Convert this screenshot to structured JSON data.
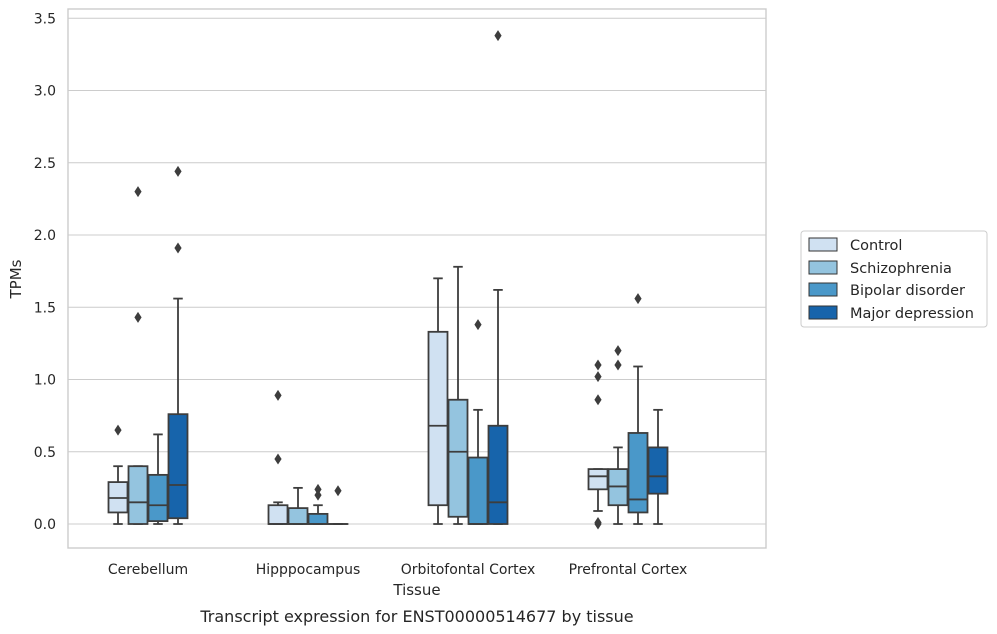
{
  "chart_data": {
    "type": "box",
    "title": "",
    "caption": "Transcript expression for ENST00000514677 by tissue",
    "xlabel": "Tissue",
    "ylabel": "TPMs",
    "ylim": [
      -0.16,
      3.56
    ],
    "yticks": [
      "0.0",
      "0.5",
      "1.0",
      "1.5",
      "2.0",
      "2.5",
      "3.0",
      "3.5"
    ],
    "grid": "horizontal",
    "legend_position": "right",
    "categories": [
      "Cerebellum",
      "Hipppocampus",
      "Orbitofontal Cortex",
      "Prefrontal Cortex"
    ],
    "series": [
      {
        "name": "Control",
        "color": "#d0e1f2",
        "boxes": [
          {
            "whislo": 0.0,
            "q1": 0.08,
            "med": 0.18,
            "q3": 0.29,
            "whishi": 0.4,
            "fliers": [
              0.65
            ]
          },
          {
            "whislo": 0.0,
            "q1": 0.0,
            "med": 0.0,
            "q3": 0.13,
            "whishi": 0.15,
            "fliers": [
              0.45,
              0.89
            ]
          },
          {
            "whislo": 0.0,
            "q1": 0.13,
            "med": 0.68,
            "q3": 1.33,
            "whishi": 1.7,
            "fliers": []
          },
          {
            "whislo": 0.09,
            "q1": 0.24,
            "med": 0.33,
            "q3": 0.38,
            "whishi": 0.38,
            "fliers": [
              0.0,
              0.01,
              0.86,
              1.02,
              1.1
            ]
          }
        ]
      },
      {
        "name": "Schizophrenia",
        "color": "#94c4df",
        "boxes": [
          {
            "whislo": 0.0,
            "q1": 0.0,
            "med": 0.15,
            "q3": 0.4,
            "whishi": 0.4,
            "fliers": [
              1.43,
              2.3
            ]
          },
          {
            "whislo": 0.0,
            "q1": 0.0,
            "med": 0.0,
            "q3": 0.11,
            "whishi": 0.25,
            "fliers": []
          },
          {
            "whislo": 0.0,
            "q1": 0.05,
            "med": 0.5,
            "q3": 0.86,
            "whishi": 1.78,
            "fliers": []
          },
          {
            "whislo": 0.0,
            "q1": 0.13,
            "med": 0.26,
            "q3": 0.38,
            "whishi": 0.53,
            "fliers": [
              1.1,
              1.2
            ]
          }
        ]
      },
      {
        "name": "Bipolar disorder",
        "color": "#4a98c9",
        "boxes": [
          {
            "whislo": 0.0,
            "q1": 0.02,
            "med": 0.13,
            "q3": 0.34,
            "whishi": 0.62,
            "fliers": []
          },
          {
            "whislo": 0.0,
            "q1": 0.0,
            "med": 0.0,
            "q3": 0.07,
            "whishi": 0.13,
            "fliers": [
              0.2,
              0.24
            ]
          },
          {
            "whislo": 0.0,
            "q1": 0.0,
            "med": 0.0,
            "q3": 0.46,
            "whishi": 0.79,
            "fliers": [
              1.38
            ]
          },
          {
            "whislo": 0.0,
            "q1": 0.08,
            "med": 0.17,
            "q3": 0.63,
            "whishi": 1.09,
            "fliers": [
              1.56
            ]
          }
        ]
      },
      {
        "name": "Major depression",
        "color": "#1764ab",
        "boxes": [
          {
            "whislo": 0.0,
            "q1": 0.04,
            "med": 0.27,
            "q3": 0.76,
            "whishi": 1.56,
            "fliers": [
              1.91,
              2.44
            ]
          },
          {
            "whislo": 0.0,
            "q1": 0.0,
            "med": 0.0,
            "q3": 0.0,
            "whishi": 0.0,
            "fliers": [
              0.23
            ]
          },
          {
            "whislo": 0.0,
            "q1": 0.0,
            "med": 0.15,
            "q3": 0.68,
            "whishi": 1.62,
            "fliers": [
              3.38
            ]
          },
          {
            "whislo": 0.0,
            "q1": 0.21,
            "med": 0.33,
            "q3": 0.53,
            "whishi": 0.79,
            "fliers": []
          }
        ]
      }
    ]
  }
}
